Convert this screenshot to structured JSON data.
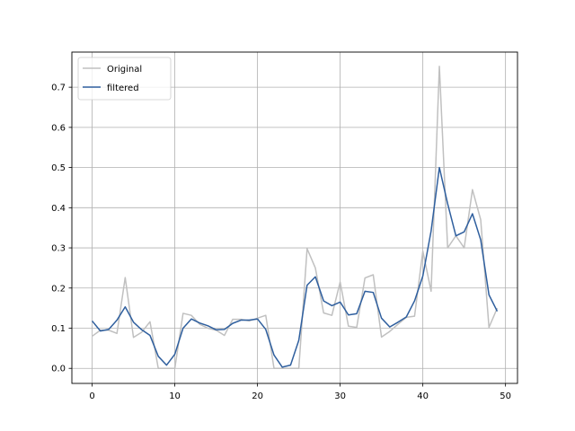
{
  "chart_data": {
    "type": "line",
    "title": "",
    "xlabel": "",
    "ylabel": "",
    "xlim": [
      -2.45,
      51.45
    ],
    "ylim": [
      -0.0375,
      0.7875
    ],
    "xticks": [
      0,
      10,
      20,
      30,
      40,
      50
    ],
    "yticks": [
      0.0,
      0.1,
      0.2,
      0.3,
      0.4,
      0.5,
      0.6,
      0.7
    ],
    "xtick_labels": [
      "0",
      "10",
      "20",
      "30",
      "40",
      "50"
    ],
    "ytick_labels": [
      "0.0",
      "0.1",
      "0.2",
      "0.3",
      "0.4",
      "0.5",
      "0.6",
      "0.7"
    ],
    "grid": true,
    "legend_position": "top-left",
    "x": [
      0,
      1,
      2,
      3,
      4,
      5,
      6,
      7,
      8,
      9,
      10,
      11,
      12,
      13,
      14,
      15,
      16,
      17,
      18,
      19,
      20,
      21,
      22,
      23,
      24,
      25,
      26,
      27,
      28,
      29,
      30,
      31,
      32,
      33,
      34,
      35,
      36,
      37,
      38,
      39,
      40,
      41,
      42,
      43,
      44,
      45,
      46,
      47,
      48,
      49
    ],
    "series": [
      {
        "name": "Original",
        "color": "#c0c0c0",
        "values": [
          0.08,
          0.095,
          0.095,
          0.087,
          0.226,
          0.077,
          0.09,
          0.116,
          0.0,
          0.0,
          0.0,
          0.137,
          0.132,
          0.11,
          0.1,
          0.095,
          0.082,
          0.122,
          0.122,
          0.118,
          0.125,
          0.132,
          0.0,
          0.0,
          0.0,
          0.0,
          0.298,
          0.25,
          0.138,
          0.132,
          0.215,
          0.105,
          0.102,
          0.225,
          0.233,
          0.078,
          0.092,
          0.11,
          0.127,
          0.13,
          0.292,
          0.192,
          0.752,
          0.3,
          0.33,
          0.3,
          0.445,
          0.37,
          0.102,
          0.15
        ]
      },
      {
        "name": "filtered",
        "color": "#2f5f9e",
        "values": [
          0.118,
          0.093,
          0.097,
          0.12,
          0.153,
          0.115,
          0.096,
          0.082,
          0.03,
          0.008,
          0.035,
          0.1,
          0.123,
          0.113,
          0.106,
          0.096,
          0.097,
          0.112,
          0.12,
          0.12,
          0.123,
          0.097,
          0.033,
          0.003,
          0.008,
          0.07,
          0.207,
          0.228,
          0.168,
          0.156,
          0.165,
          0.133,
          0.136,
          0.192,
          0.189,
          0.125,
          0.103,
          0.115,
          0.128,
          0.168,
          0.23,
          0.342,
          0.5,
          0.41,
          0.33,
          0.34,
          0.385,
          0.32,
          0.183,
          0.142
        ]
      }
    ]
  }
}
